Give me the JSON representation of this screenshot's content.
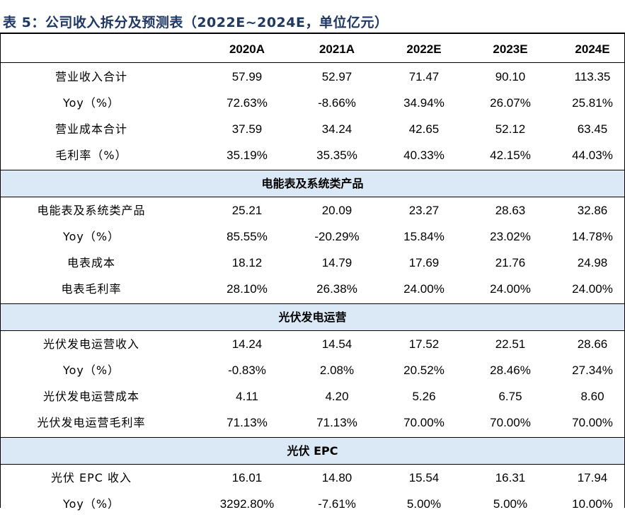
{
  "title": "表 5：公司收入拆分及预测表（2022E~2024E，单位亿元）",
  "header": [
    "",
    "2020A",
    "2021A",
    "2022E",
    "2023E",
    "2024E"
  ],
  "group_total": {
    "rows": [
      {
        "label": "营业收入合计",
        "values": [
          "57.99",
          "52.97",
          "71.47",
          "90.10",
          "113.35"
        ]
      },
      {
        "label": "Yoy（%）",
        "values": [
          "72.63%",
          "-8.66%",
          "34.94%",
          "26.07%",
          "25.81%"
        ]
      },
      {
        "label": "营业成本合计",
        "values": [
          "37.59",
          "34.24",
          "42.65",
          "52.12",
          "63.45"
        ]
      },
      {
        "label": "毛利率（%）",
        "values": [
          "35.19%",
          "35.35%",
          "40.33%",
          "42.15%",
          "44.03%"
        ]
      }
    ]
  },
  "section_meter": {
    "title": "电能表及系统类产品",
    "rows": [
      {
        "label": "电能表及系统类产品",
        "values": [
          "25.21",
          "20.09",
          "23.27",
          "28.63",
          "32.86"
        ]
      },
      {
        "label": "Yoy（%）",
        "values": [
          "85.55%",
          "-20.29%",
          "15.84%",
          "23.02%",
          "14.78%"
        ]
      },
      {
        "label": "电表成本",
        "values": [
          "18.12",
          "14.79",
          "17.69",
          "21.76",
          "24.98"
        ]
      },
      {
        "label": "电表毛利率",
        "values": [
          "28.10%",
          "26.38%",
          "24.00%",
          "24.00%",
          "24.00%"
        ]
      }
    ]
  },
  "section_pv_ops": {
    "title": "光伏发电运营",
    "rows": [
      {
        "label": "光伏发电运营收入",
        "values": [
          "14.24",
          "14.54",
          "17.52",
          "22.51",
          "28.66"
        ]
      },
      {
        "label": "Yoy（%）",
        "values": [
          "-0.83%",
          "2.08%",
          "20.52%",
          "28.46%",
          "27.34%"
        ]
      },
      {
        "label": "光伏发电运营成本",
        "values": [
          "4.11",
          "4.20",
          "5.26",
          "6.75",
          "8.60"
        ]
      },
      {
        "label": "光伏发电运营毛利率",
        "values": [
          "71.13%",
          "71.13%",
          "70.00%",
          "70.00%",
          "70.00%"
        ]
      }
    ]
  },
  "section_pv_epc": {
    "title": "光伏 EPC",
    "rows": [
      {
        "label": "光伏 EPC 收入",
        "values": [
          "16.01",
          "14.80",
          "15.54",
          "16.31",
          "17.94"
        ]
      },
      {
        "label": "Yoy（%）",
        "values": [
          "3292.80%",
          "-7.61%",
          "5.00%",
          "5.00%",
          "10.00%"
        ]
      }
    ]
  }
}
